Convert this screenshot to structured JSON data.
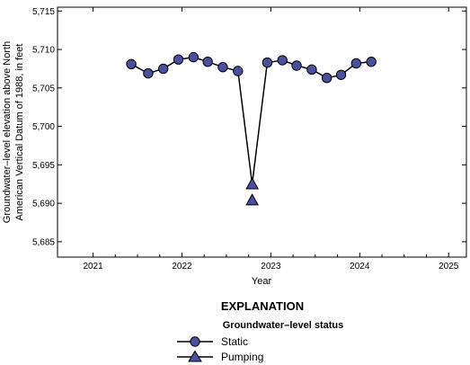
{
  "chart_data": {
    "type": "line",
    "xlabel": "Year",
    "ylabel_lines": [
      "Groundwater–level elevation above North",
      "American Vertical Datum of 1988, in feet"
    ],
    "xlim": [
      2020.6,
      2025.2
    ],
    "ylim": [
      5683,
      5715.5
    ],
    "x_ticks": [
      2021,
      2022,
      2023,
      2024,
      2025
    ],
    "x_tick_labels": [
      "2021",
      "2022",
      "2023",
      "2024",
      "2025"
    ],
    "y_ticks": [
      5685,
      5690,
      5695,
      5700,
      5705,
      5710,
      5715
    ],
    "y_tick_labels": [
      "5,685",
      "5,690",
      "5,695",
      "5,700",
      "5,705",
      "5,710",
      "5,715"
    ],
    "grid": false,
    "series_line": [
      [
        2021.43,
        5708.1
      ],
      [
        2021.62,
        5706.9
      ],
      [
        2021.79,
        5707.5
      ],
      [
        2021.96,
        5708.7
      ],
      [
        2022.13,
        5709.0
      ],
      [
        2022.29,
        5708.4
      ],
      [
        2022.46,
        5707.7
      ],
      [
        2022.63,
        5707.2
      ],
      [
        2022.79,
        5692.5
      ],
      [
        2022.96,
        5708.3
      ],
      [
        2023.13,
        5708.6
      ],
      [
        2023.29,
        5707.9
      ],
      [
        2023.46,
        5707.4
      ],
      [
        2023.63,
        5706.3
      ],
      [
        2023.79,
        5706.7
      ],
      [
        2023.96,
        5708.2
      ],
      [
        2024.13,
        5708.4
      ]
    ],
    "static_points": [
      [
        2021.43,
        5708.1
      ],
      [
        2021.62,
        5706.9
      ],
      [
        2021.79,
        5707.5
      ],
      [
        2021.96,
        5708.7
      ],
      [
        2022.13,
        5709.0
      ],
      [
        2022.29,
        5708.4
      ],
      [
        2022.46,
        5707.7
      ],
      [
        2022.63,
        5707.2
      ],
      [
        2022.96,
        5708.3
      ],
      [
        2023.13,
        5708.6
      ],
      [
        2023.29,
        5707.9
      ],
      [
        2023.46,
        5707.4
      ],
      [
        2023.63,
        5706.3
      ],
      [
        2023.79,
        5706.7
      ],
      [
        2023.96,
        5708.2
      ],
      [
        2024.13,
        5708.4
      ]
    ],
    "pumping_points": [
      [
        2022.79,
        5692.5
      ],
      [
        2022.79,
        5690.4
      ]
    ],
    "colors": {
      "marker_fill": "#4a4f9e",
      "line": "#000000"
    }
  },
  "legend": {
    "title": "EXPLANATION",
    "subtitle": "Groundwater–level status",
    "static_label": "Static",
    "pumping_label": "Pumping"
  }
}
